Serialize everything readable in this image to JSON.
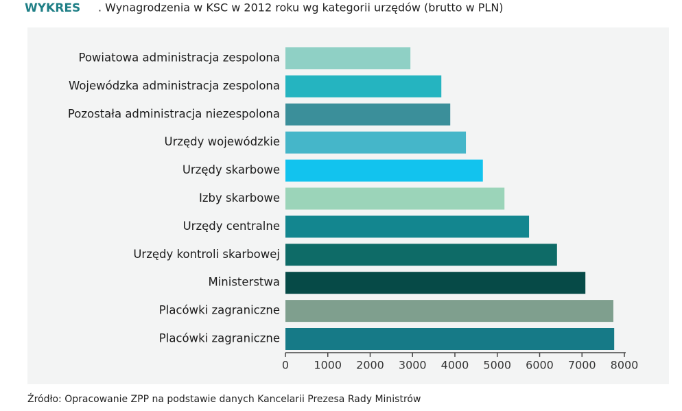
{
  "chart_data": {
    "type": "hbar",
    "label": "WYKRES",
    "title": ". Wynagrodzenia w KSC w 2012 roku wg kategorii urzędów (brutto w PLN)",
    "source": "Źródło: Opracowanie ZPP na podstawie danych Kancelarii Prezesa Rady Ministrów",
    "categories": [
      "Powiatowa administracja zespolona",
      "Wojewódzka administracja zespolona",
      "Pozostała administracja niezespolona",
      "Urzędy wojewódzkie",
      "Urzędy skarbowe",
      "Izby skarbowe",
      "Urzędy centralne",
      "Urzędy kontroli skarbowej",
      "Ministerstwa",
      "Placówki zagraniczne",
      "Placówki zagraniczne"
    ],
    "values": [
      2950,
      3680,
      3890,
      4260,
      4660,
      5170,
      5750,
      6410,
      7080,
      7740,
      7760
    ],
    "colors": [
      "#8fd0c5",
      "#25b4c0",
      "#3b8f9a",
      "#45b6c9",
      "#12c3ee",
      "#9bd4b9",
      "#13868f",
      "#0e6b67",
      "#064a47",
      "#7f9f8e",
      "#167a87"
    ],
    "xlim": [
      0,
      8000
    ],
    "xticks": [
      0,
      1000,
      2000,
      3000,
      4000,
      5000,
      6000,
      7000,
      8000
    ]
  }
}
